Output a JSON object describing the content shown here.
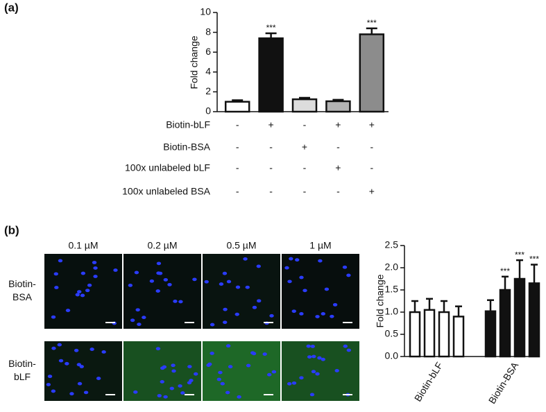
{
  "chart_data": [
    {
      "type": "bar",
      "label": "(a)",
      "ylabel": "Fold change",
      "values": [
        1.0,
        7.4,
        1.25,
        1.05,
        7.8
      ],
      "errors": [
        0.15,
        0.5,
        0.15,
        0.15,
        0.6
      ],
      "colors": [
        "#ffffff",
        "#111111",
        "#dcdcdc",
        "#b4b4b4",
        "#8c8c8c"
      ],
      "annotations": [
        null,
        "***",
        null,
        null,
        "***"
      ],
      "ylim": [
        0,
        10
      ],
      "yticks": [
        0,
        2,
        4,
        6,
        8,
        10
      ],
      "conditions": [
        {
          "name": "Biotin-bLF",
          "signs": [
            "-",
            "+",
            "-",
            "+",
            "+"
          ]
        },
        {
          "name": "Biotin-BSA",
          "signs": [
            "-",
            "-",
            "+",
            "-",
            "-"
          ]
        },
        {
          "name": "100x unlabeled bLF",
          "signs": [
            "-",
            "-",
            "-",
            "+",
            "-"
          ]
        },
        {
          "name": "100x unlabeled BSA",
          "signs": [
            "-",
            "-",
            "-",
            "-",
            "+"
          ]
        }
      ]
    },
    {
      "type": "grouped_bar",
      "label": "(b)",
      "ylabel": "Fold change",
      "categories": [
        "Biotin-bLF",
        "Biotin-BSA"
      ],
      "groups": [
        {
          "color": "#ffffff",
          "values": [
            1.0,
            1.05,
            1.0,
            0.9
          ],
          "errors": [
            0.25,
            0.25,
            0.25,
            0.23
          ],
          "annotations": [
            null,
            null,
            null,
            null
          ]
        },
        {
          "color": "#111111",
          "values": [
            1.02,
            1.5,
            1.75,
            1.65
          ],
          "errors": [
            0.25,
            0.3,
            0.42,
            0.42
          ],
          "annotations": [
            null,
            "***",
            "***",
            "***"
          ]
        }
      ],
      "ylim": [
        0,
        2.5
      ],
      "yticks": [
        {
          "value": 0,
          "label": "0.0"
        },
        0.5,
        {
          "value": 1,
          "label": "1.0"
        },
        1.5,
        {
          "value": 2,
          "label": "2.0"
        },
        2.5
      ]
    }
  ],
  "micrographs": {
    "columns": [
      "0.1 µM",
      "0.2 µM",
      "0.5 µM",
      "1 µM"
    ],
    "rows": [
      [
        "Biotin-",
        "BSA"
      ],
      [
        "Biotin-",
        "bLF"
      ]
    ]
  }
}
